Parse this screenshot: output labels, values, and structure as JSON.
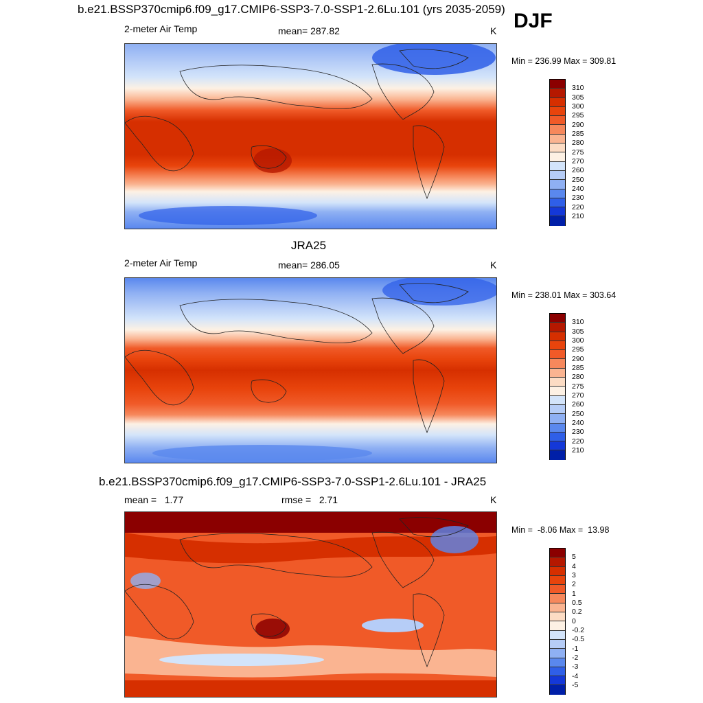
{
  "season": "DJF",
  "panels": [
    {
      "title": "b.e21.BSSP370cmip6.f09_g17.CMIP6-SSP3-7.0-SSP1-2.6Lu.101 (yrs 2035-2059)",
      "left_label": "2-meter Air Temp",
      "center_label": "mean= 287.82",
      "units": "K",
      "minmax": "Min = 236.99 Max = 309.81"
    },
    {
      "title": "JRA25",
      "left_label": "2-meter Air Temp",
      "center_label": "mean= 286.05",
      "units": "K",
      "minmax": "Min = 238.01 Max = 303.64"
    },
    {
      "title": "b.e21.BSSP370cmip6.f09_g17.CMIP6-SSP3-7.0-SSP1-2.6Lu.101 - JRA25",
      "left_label": "mean =   1.77",
      "center_label": "rmse =   2.71",
      "units": "K",
      "minmax": "Min =  -8.06 Max =  13.98"
    }
  ],
  "chart_data": [
    {
      "type": "heatmap",
      "variable": "2-meter Air Temp",
      "units": "K",
      "mean": 287.82,
      "min": 236.99,
      "max": 309.81,
      "colorbar_levels": [
        "310",
        "305",
        "300",
        "295",
        "290",
        "285",
        "280",
        "275",
        "270",
        "260",
        "250",
        "240",
        "230",
        "220",
        "210"
      ],
      "colorbar_colors": [
        "#8b0000",
        "#b51800",
        "#d62f00",
        "#e8440c",
        "#f05a28",
        "#f6885c",
        "#fab491",
        "#fcdcc4",
        "#fdf1e4",
        "#d3e4fa",
        "#b6cdf7",
        "#8fb0f3",
        "#5a88ee",
        "#2f5fe8",
        "#1438d8",
        "#001fa8"
      ]
    },
    {
      "type": "heatmap",
      "variable": "2-meter Air Temp",
      "units": "K",
      "mean": 286.05,
      "min": 238.01,
      "max": 303.64,
      "colorbar_levels": [
        "310",
        "305",
        "300",
        "295",
        "290",
        "285",
        "280",
        "275",
        "270",
        "260",
        "250",
        "240",
        "230",
        "220",
        "210"
      ],
      "colorbar_colors": [
        "#8b0000",
        "#b51800",
        "#d62f00",
        "#e8440c",
        "#f05a28",
        "#f6885c",
        "#fab491",
        "#fcdcc4",
        "#fdf1e4",
        "#d3e4fa",
        "#b6cdf7",
        "#8fb0f3",
        "#5a88ee",
        "#2f5fe8",
        "#1438d8",
        "#001fa8"
      ]
    },
    {
      "type": "heatmap",
      "variable": "difference",
      "units": "K",
      "mean": 1.77,
      "rmse": 2.71,
      "min": -8.06,
      "max": 13.98,
      "colorbar_levels": [
        "5",
        "4",
        "3",
        "2",
        "1",
        "0.5",
        "0.2",
        "0",
        "-0.2",
        "-0.5",
        "-1",
        "-2",
        "-3",
        "-4",
        "-5"
      ],
      "colorbar_colors": [
        "#8b0000",
        "#b51800",
        "#d62f00",
        "#e8440c",
        "#f05a28",
        "#f6885c",
        "#fab491",
        "#fcdcc4",
        "#fdf1e4",
        "#d3e4fa",
        "#b6cdf7",
        "#8fb0f3",
        "#5a88ee",
        "#2f5fe8",
        "#1438d8",
        "#001fa8"
      ]
    }
  ]
}
